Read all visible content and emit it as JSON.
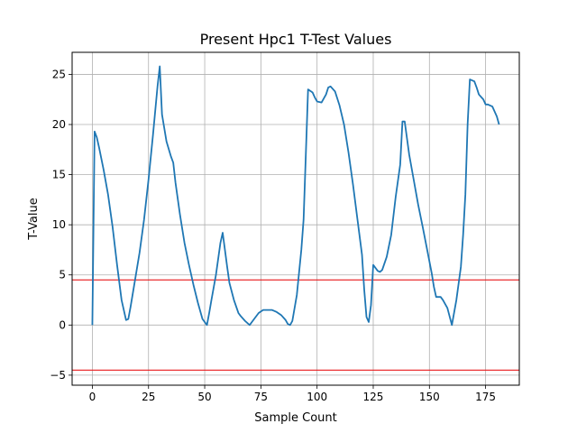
{
  "chart_data": {
    "type": "line",
    "title": "Present Hpc1 T-Test Values",
    "xlabel": "Sample Count",
    "ylabel": "T-Value",
    "xlim": [
      -9,
      190
    ],
    "ylim": [
      -6,
      27.2
    ],
    "xticks": [
      0,
      25,
      50,
      75,
      100,
      125,
      150,
      175
    ],
    "yticks": [
      -5,
      0,
      5,
      10,
      15,
      20,
      25
    ],
    "grid": true,
    "colors": {
      "line": "#1f77b4",
      "threshold": "#e8191b",
      "grid": "#b0b0b0"
    },
    "thresholds": [
      4.5,
      -4.5
    ],
    "series": [
      {
        "x": [
          0,
          1,
          2,
          3,
          5,
          7,
          9,
          11,
          13,
          15,
          16,
          17,
          19,
          21,
          23,
          25,
          27,
          29,
          30,
          31,
          33,
          35,
          36,
          37,
          39,
          41,
          43,
          45,
          47,
          49,
          51,
          52,
          53,
          55,
          57,
          58,
          59,
          60,
          61,
          63,
          65,
          66,
          68,
          70,
          72,
          74,
          76,
          78,
          80,
          82,
          84,
          86,
          87,
          88,
          89,
          91,
          93,
          94,
          95,
          96,
          98,
          99,
          100,
          102,
          104,
          105,
          106,
          108,
          110,
          112,
          114,
          116,
          118,
          120,
          121,
          122,
          123,
          124,
          125,
          127,
          128,
          129,
          131,
          133,
          135,
          137,
          138,
          139,
          141,
          143,
          145,
          147,
          149,
          151,
          152,
          153,
          154,
          155,
          156,
          158,
          160,
          162,
          164,
          165,
          166,
          167,
          168,
          170,
          171,
          172,
          174,
          175,
          176,
          178,
          180,
          181
        ],
        "values": [
          0.0,
          19.3,
          18.7,
          17.7,
          15.5,
          13.0,
          9.8,
          6.0,
          2.5,
          0.5,
          0.6,
          1.8,
          4.5,
          7.2,
          10.5,
          14.5,
          19.0,
          23.8,
          25.8,
          21.0,
          18.3,
          16.8,
          16.2,
          14.2,
          11.0,
          8.2,
          6.0,
          4.0,
          2.2,
          0.6,
          0.0,
          1.2,
          2.5,
          5.0,
          8.2,
          9.2,
          7.5,
          5.8,
          4.2,
          2.5,
          1.2,
          0.9,
          0.4,
          0.0,
          0.6,
          1.2,
          1.5,
          1.5,
          1.5,
          1.3,
          1.0,
          0.5,
          0.1,
          0.0,
          0.4,
          3.0,
          7.5,
          10.5,
          17.0,
          23.5,
          23.2,
          22.7,
          22.3,
          22.2,
          23.0,
          23.7,
          23.8,
          23.3,
          21.9,
          20.0,
          17.2,
          14.0,
          10.5,
          7.0,
          3.5,
          0.8,
          0.3,
          2.0,
          6.0,
          5.4,
          5.3,
          5.5,
          6.8,
          9.0,
          12.8,
          16.0,
          20.3,
          20.3,
          17.0,
          14.5,
          12.0,
          9.8,
          7.5,
          5.2,
          3.8,
          2.8,
          2.8,
          2.8,
          2.5,
          1.7,
          0.0,
          2.5,
          5.8,
          9.0,
          13.0,
          20.0,
          24.5,
          24.3,
          23.7,
          23.0,
          22.5,
          22.0,
          22.0,
          21.8,
          20.8,
          20.0
        ]
      }
    ]
  }
}
